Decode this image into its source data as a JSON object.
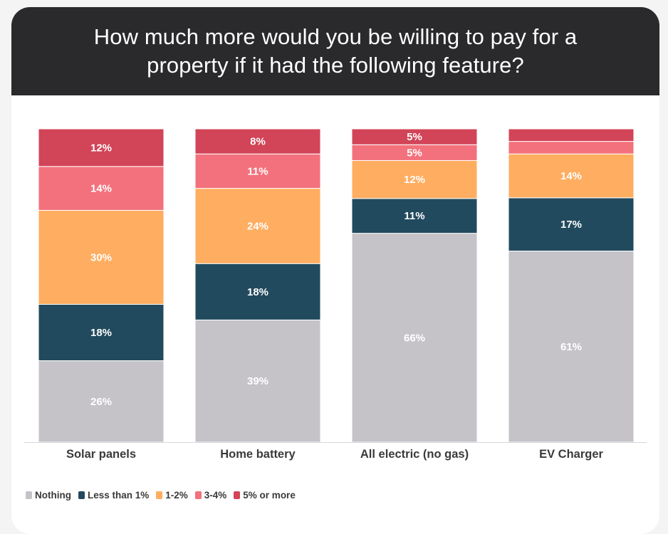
{
  "title": "How much more would you be willing to pay for a property if it had the following feature?",
  "colors": {
    "header_bg": "#2a2a2d",
    "nothing": "#c5c3c8",
    "less_than_1": "#224a5e",
    "one_two": "#ffad60",
    "three_four": "#f3717c",
    "five_plus": "#d24458"
  },
  "chart_data": {
    "type": "bar",
    "stacked": true,
    "percent_scale": true,
    "title": "How much more would you be willing to pay for a property if it had the following feature?",
    "categories": [
      "Solar panels",
      "Home battery",
      "All electric (no gas)",
      "EV Charger"
    ],
    "series": [
      {
        "name": "Nothing",
        "color": "#c5c3c8",
        "values": [
          26,
          39,
          66,
          61
        ],
        "labels": [
          "26%",
          "39%",
          "66%",
          "61%"
        ]
      },
      {
        "name": "Less than 1%",
        "color": "#224a5e",
        "values": [
          18,
          18,
          11,
          17
        ],
        "labels": [
          "18%",
          "18%",
          "11%",
          "17%"
        ]
      },
      {
        "name": "1-2%",
        "color": "#ffad60",
        "values": [
          30,
          24,
          12,
          14
        ],
        "labels": [
          "30%",
          "24%",
          "12%",
          "14%"
        ]
      },
      {
        "name": "3-4%",
        "color": "#f3717c",
        "values": [
          14,
          11,
          5,
          4
        ],
        "labels": [
          "14%",
          "11%",
          "5%",
          ""
        ]
      },
      {
        "name": "5% or more",
        "color": "#d24458",
        "values": [
          12,
          8,
          5,
          4
        ],
        "labels": [
          "12%",
          "8%",
          "5%",
          ""
        ]
      }
    ],
    "legend_position": "bottom-left",
    "grid": false
  }
}
